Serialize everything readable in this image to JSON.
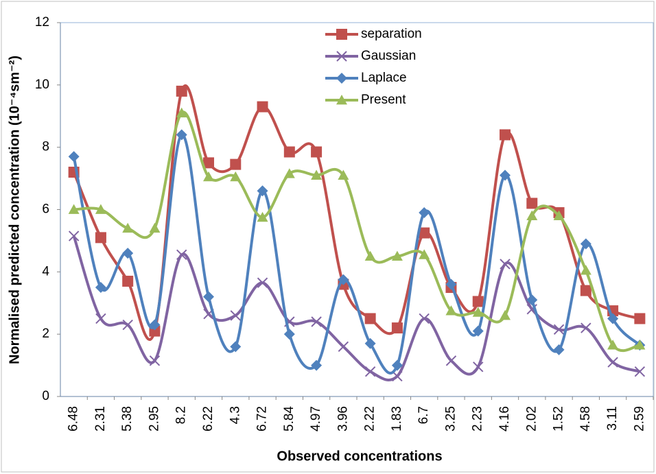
{
  "chart_data": {
    "type": "line",
    "smooth": true,
    "x_label": "Observed concentrations",
    "y_label": "Normalised predicted concentration (10⁻⁴sm⁻²)",
    "categories": [
      "6.48",
      "2.31",
      "5.38",
      "2.95",
      "8.2",
      "6.22",
      "4.3",
      "6.72",
      "5.84",
      "4.97",
      "3.96",
      "2.22",
      "1.83",
      "6.7",
      "3.25",
      "2.23",
      "4.16",
      "2.02",
      "1.52",
      "4.58",
      "3.11",
      "2.59"
    ],
    "series": [
      {
        "name": "separation",
        "color": "#c0504d",
        "marker": "square",
        "values": [
          7.2,
          5.1,
          3.7,
          2.1,
          9.8,
          7.5,
          7.45,
          9.3,
          7.85,
          7.85,
          3.6,
          2.5,
          2.2,
          5.25,
          3.5,
          3.05,
          8.4,
          6.2,
          5.9,
          3.4,
          2.75,
          2.5
        ]
      },
      {
        "name": "Gaussian",
        "color": "#8064a2",
        "marker": "x",
        "values": [
          5.15,
          2.5,
          2.3,
          1.15,
          4.55,
          2.65,
          2.6,
          3.65,
          2.4,
          2.4,
          1.6,
          0.8,
          0.65,
          2.5,
          1.15,
          0.95,
          4.25,
          2.8,
          2.15,
          2.2,
          1.1,
          0.8
        ]
      },
      {
        "name": "Laplace",
        "color": "#4f81bd",
        "marker": "diamond",
        "values": [
          7.7,
          3.5,
          4.6,
          2.3,
          8.4,
          3.2,
          1.6,
          6.6,
          2.0,
          1.0,
          3.75,
          1.7,
          1.0,
          5.9,
          3.6,
          2.1,
          7.1,
          3.1,
          1.5,
          4.9,
          2.5,
          1.65
        ]
      },
      {
        "name": "Present",
        "color": "#9bbb59",
        "marker": "triangle",
        "values": [
          6.0,
          6.0,
          5.4,
          5.4,
          9.1,
          7.05,
          7.05,
          5.75,
          7.15,
          7.1,
          7.1,
          4.5,
          4.5,
          4.55,
          2.75,
          2.7,
          2.6,
          5.8,
          5.8,
          4.05,
          1.65,
          1.65
        ]
      }
    ],
    "ylim": [
      0,
      12
    ],
    "yticks": [
      0,
      2,
      4,
      6,
      8,
      10,
      12
    ],
    "grid": false,
    "legend": "top"
  }
}
